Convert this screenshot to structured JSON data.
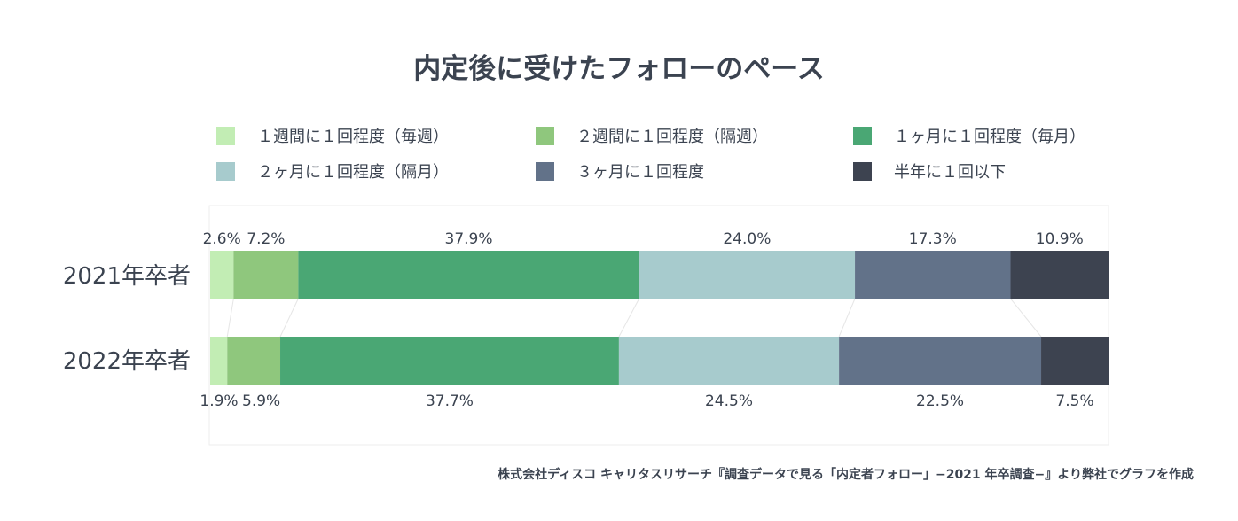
{
  "chart_data": {
    "type": "bar",
    "orientation": "horizontal",
    "stacked": true,
    "normalized": true,
    "title": "内定後に受けたフォローのペース",
    "categories": [
      "2021年卒者",
      "2022年卒者"
    ],
    "series": [
      {
        "name": "１週間に１回程度（毎週）",
        "color": "#c2edb4",
        "values": [
          2.6,
          1.9
        ],
        "labels": [
          "2.6%",
          "1.9%"
        ]
      },
      {
        "name": "２週間に１回程度（隔週）",
        "color": "#8fc77d",
        "values": [
          7.2,
          5.9
        ],
        "labels": [
          "7.2%",
          "5.9%"
        ]
      },
      {
        "name": "１ヶ月に１回程度（毎月）",
        "color": "#4aa774",
        "values": [
          37.9,
          37.7
        ],
        "labels": [
          "37.9%",
          "37.7%"
        ]
      },
      {
        "name": "２ヶ月に１回程度（隔月）",
        "color": "#a7cbcd",
        "values": [
          24.0,
          24.5
        ],
        "labels": [
          "24.0%",
          "24.5%"
        ]
      },
      {
        "name": "３ヶ月に１回程度",
        "color": "#627289",
        "values": [
          17.3,
          22.5
        ],
        "labels": [
          "17.3%",
          "22.5%"
        ]
      },
      {
        "name": "半年に１回以下",
        "color": "#3d4350",
        "values": [
          10.9,
          7.5
        ],
        "labels": [
          "10.9%",
          "7.5%"
        ]
      }
    ],
    "legend_position": "top",
    "source": "株式会社ディスコ キャリタスリサーチ『調査データで見る「内定者フォロー」−2021 年卒調査−』より弊社でグラフを作成"
  }
}
